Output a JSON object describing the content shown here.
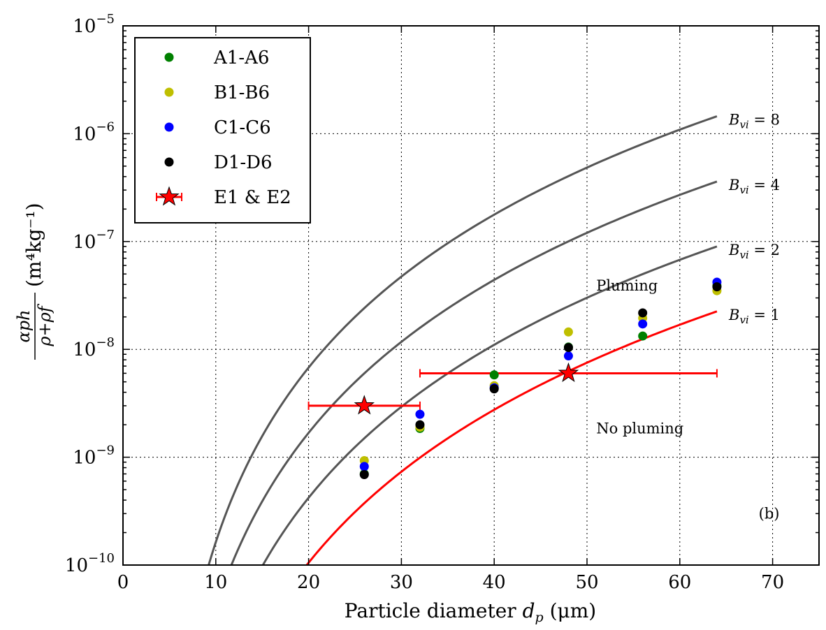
{
  "chart_data": {
    "type": "scatter",
    "xlabel": "Particle diameter d_p (μm)",
    "xlabel_parts": {
      "main": "Particle diameter ",
      "var": "d",
      "sub": "p",
      "unit": " (μm)"
    },
    "ylabel": "α_p h / (ρ+ρ_f) (m⁴kg⁻¹)",
    "ylabel_parts": {
      "num": "αph",
      "den": "ρ+ρf",
      "unit": "(m⁴kg⁻¹)"
    },
    "xlim": [
      0,
      75
    ],
    "ylim": [
      1e-10,
      1e-05
    ],
    "yscale": "log",
    "grid": true,
    "legend_position": "top-left",
    "x_ticks": [
      0,
      10,
      20,
      30,
      40,
      50,
      60,
      70
    ],
    "x_tick_labels": [
      "0",
      "10",
      "20",
      "30",
      "40",
      "50",
      "60",
      "70"
    ],
    "y_ticks": [
      {
        "value": 1e-10,
        "base": "10",
        "exp": "−10"
      },
      {
        "value": 1e-09,
        "base": "10",
        "exp": "−9"
      },
      {
        "value": 1e-08,
        "base": "10",
        "exp": "−8"
      },
      {
        "value": 1e-07,
        "base": "10",
        "exp": "−7"
      },
      {
        "value": 1e-06,
        "base": "10",
        "exp": "−6"
      },
      {
        "value": 1e-05,
        "base": "10",
        "exp": "−5"
      }
    ],
    "series": [
      {
        "name": "A1-A6",
        "marker": "circle",
        "color": "#008000",
        "x": [
          26,
          32,
          40,
          48,
          56,
          64
        ],
        "y": [
          7e-10,
          1.85e-09,
          5.8e-09,
          1.05e-08,
          1.33e-08,
          3.9e-08
        ]
      },
      {
        "name": "B1-B6",
        "marker": "circle",
        "color": "#bfbf00",
        "x": [
          26,
          32,
          40,
          48,
          56,
          64
        ],
        "y": [
          9.3e-10,
          1.9e-09,
          4.6e-09,
          1.45e-08,
          1.95e-08,
          3.5e-08
        ]
      },
      {
        "name": "C1-C6",
        "marker": "circle",
        "color": "#0000ff",
        "x": [
          26,
          32,
          40,
          48,
          56,
          64
        ],
        "y": [
          8.2e-10,
          2.5e-09,
          4.4e-09,
          8.7e-09,
          1.72e-08,
          4.2e-08
        ]
      },
      {
        "name": "D1-D6",
        "marker": "circle",
        "color": "#000000",
        "x": [
          26,
          32,
          40,
          48,
          56,
          64
        ],
        "y": [
          6.9e-10,
          2e-09,
          4.3e-09,
          1.04e-08,
          2.18e-08,
          3.8e-08
        ]
      },
      {
        "name": "E1 & E2",
        "marker": "star",
        "color": "#ff0000",
        "x": [
          26,
          48
        ],
        "y": [
          3e-09,
          6e-09
        ],
        "xerr_range": [
          [
            20,
            32
          ],
          [
            32,
            64
          ]
        ]
      }
    ],
    "curves": [
      {
        "label_var": "B",
        "label_sub": "vi",
        "label_value": " = 8",
        "k": 1.45e-06,
        "color": "#555555"
      },
      {
        "label_var": "B",
        "label_sub": "vi",
        "label_value": " = 4",
        "k": 3.6e-07,
        "color": "#555555"
      },
      {
        "label_var": "B",
        "label_sub": "vi",
        "label_value": " = 2",
        "k": 9e-08,
        "color": "#555555"
      },
      {
        "label_var": "B",
        "label_sub": "vi",
        "label_value": " = 1",
        "k": 2.25e-08,
        "color": "#ff0000"
      }
    ],
    "curve_model": "y = k * ((d - 3)/61)^p with p = 4.2, drawn for d up to 64",
    "annotations": [
      {
        "text": "Pluming",
        "x": 51,
        "y": 3.9e-08
      },
      {
        "text": "No pluming",
        "x": 51,
        "y": 1.85e-09
      },
      {
        "text": "(b)",
        "x": 68.5,
        "y": 3e-10
      }
    ]
  }
}
